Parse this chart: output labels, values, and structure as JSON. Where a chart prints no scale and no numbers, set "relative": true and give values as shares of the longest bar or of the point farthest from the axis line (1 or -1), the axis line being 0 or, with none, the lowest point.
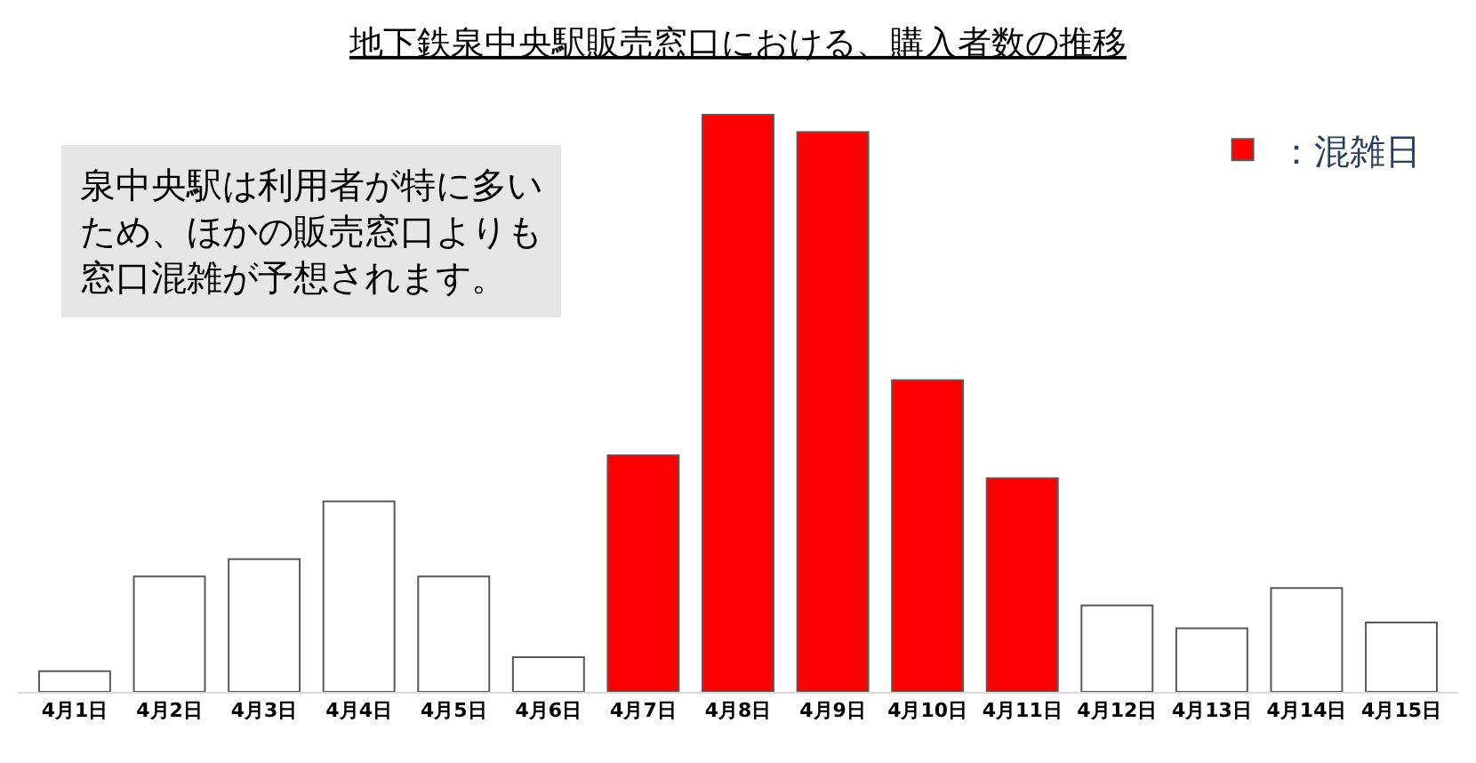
{
  "chart_data": {
    "type": "bar",
    "title": "地下鉄泉中央駅販売窓口における、購入者数の推移",
    "relative": true,
    "categories": [
      "4月1日",
      "4月2日",
      "4月3日",
      "4月4日",
      "4月5日",
      "4月6日",
      "4月7日",
      "4月8日",
      "4月9日",
      "4月10日",
      "4月11日",
      "4月12日",
      "4月13日",
      "4月14日",
      "4月15日"
    ],
    "series": [
      {
        "color": "#ffffff",
        "values": [
          0.036,
          0.2,
          0.23,
          0.33,
          0.2,
          0.06,
          null,
          null,
          null,
          null,
          null,
          0.15,
          0.11,
          0.18,
          0.12
        ]
      },
      {
        "name": "：混雑日",
        "color": "#ff0000",
        "values": [
          null,
          null,
          null,
          null,
          null,
          null,
          0.41,
          1,
          0.97,
          0.54,
          0.37,
          null,
          null,
          null,
          null
        ]
      }
    ],
    "annotations": [
      "泉中央駅は利用者が特に多いため、ほかの販売窓口よりも窓口混雑が予想されます。"
    ],
    "legend": "top right"
  }
}
